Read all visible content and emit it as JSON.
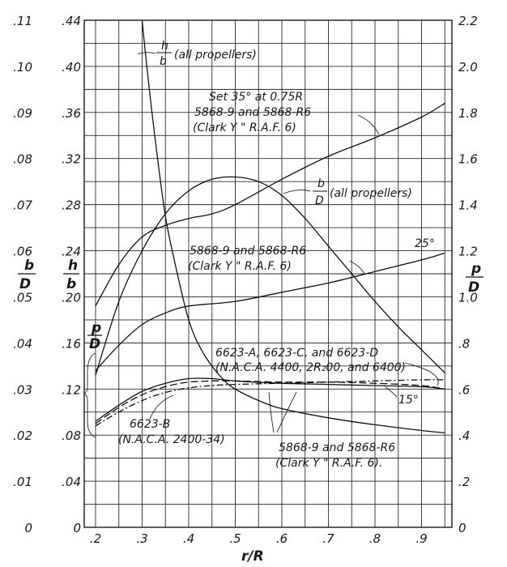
{
  "chart_data": {
    "type": "line",
    "xlabel": "r/R",
    "x_ticks": [
      ".2",
      ".3",
      ".4",
      ".5",
      ".6",
      ".7",
      ".8",
      ".9"
    ],
    "x_range": [
      0.2,
      0.95
    ],
    "axes": {
      "left_outer": {
        "label_num": "b",
        "label_den": "D",
        "range": [
          0,
          0.11
        ],
        "ticks": [
          "0",
          ".01",
          ".02",
          ".03",
          ".04",
          ".05",
          ".06",
          ".07",
          ".08",
          ".09",
          ".10",
          ".11"
        ]
      },
      "left_inner": {
        "label_num": "h",
        "label_den": "b",
        "range": [
          0,
          0.44
        ],
        "ticks": [
          "0",
          ".04",
          ".08",
          ".12",
          ".16",
          ".20",
          ".24",
          ".28",
          ".32",
          ".36",
          ".40",
          ".44"
        ]
      },
      "right": {
        "label_num": "p",
        "label_den": "D",
        "range": [
          0,
          2.2
        ],
        "ticks": [
          "0",
          ".2",
          ".4",
          ".6",
          ".8",
          "1.0",
          "1.2",
          "1.4",
          "1.6",
          "1.8",
          "2.0",
          "2.2"
        ]
      }
    },
    "series": [
      {
        "axis": "left_inner",
        "style": "solid",
        "points": [
          [
            0.3,
            0.44
          ],
          [
            0.31,
            0.4
          ],
          [
            0.33,
            0.33
          ],
          [
            0.35,
            0.27
          ],
          [
            0.37,
            0.23
          ],
          [
            0.4,
            0.18
          ],
          [
            0.43,
            0.152
          ],
          [
            0.47,
            0.13
          ],
          [
            0.5,
            0.12
          ],
          [
            0.55,
            0.11
          ],
          [
            0.6,
            0.103
          ],
          [
            0.7,
            0.095
          ],
          [
            0.8,
            0.089
          ],
          [
            0.9,
            0.084
          ],
          [
            0.95,
            0.082
          ]
        ]
      },
      {
        "axis": "left_outer",
        "style": "solid",
        "points": [
          [
            0.2,
            0.033
          ],
          [
            0.25,
            0.049
          ],
          [
            0.3,
            0.06
          ],
          [
            0.35,
            0.068
          ],
          [
            0.4,
            0.073
          ],
          [
            0.45,
            0.0755
          ],
          [
            0.5,
            0.076
          ],
          [
            0.55,
            0.075
          ],
          [
            0.6,
            0.072
          ],
          [
            0.65,
            0.067
          ],
          [
            0.7,
            0.061
          ],
          [
            0.75,
            0.055
          ],
          [
            0.8,
            0.049
          ],
          [
            0.85,
            0.0435
          ],
          [
            0.9,
            0.0385
          ],
          [
            0.95,
            0.0335
          ]
        ]
      },
      {
        "axis": "right",
        "style": "solid",
        "points": [
          [
            0.2,
            0.96
          ],
          [
            0.25,
            1.14
          ],
          [
            0.3,
            1.26
          ],
          [
            0.35,
            1.31
          ],
          [
            0.4,
            1.34
          ],
          [
            0.45,
            1.36
          ],
          [
            0.5,
            1.4
          ],
          [
            0.6,
            1.51
          ],
          [
            0.7,
            1.61
          ],
          [
            0.8,
            1.69
          ],
          [
            0.9,
            1.78
          ],
          [
            0.95,
            1.84
          ]
        ]
      },
      {
        "axis": "right",
        "style": "solid",
        "points": [
          [
            0.2,
            0.68
          ],
          [
            0.25,
            0.79
          ],
          [
            0.3,
            0.88
          ],
          [
            0.35,
            0.93
          ],
          [
            0.4,
            0.96
          ],
          [
            0.5,
            0.98
          ],
          [
            0.6,
            1.02
          ],
          [
            0.7,
            1.06
          ],
          [
            0.8,
            1.11
          ],
          [
            0.9,
            1.16
          ],
          [
            0.95,
            1.19
          ]
        ]
      },
      {
        "axis": "right",
        "style": "solid",
        "points": [
          [
            0.2,
            0.46
          ],
          [
            0.25,
            0.53
          ],
          [
            0.3,
            0.59
          ],
          [
            0.35,
            0.625
          ],
          [
            0.4,
            0.645
          ],
          [
            0.45,
            0.645
          ],
          [
            0.5,
            0.635
          ],
          [
            0.6,
            0.625
          ],
          [
            0.7,
            0.62
          ],
          [
            0.8,
            0.615
          ],
          [
            0.9,
            0.61
          ],
          [
            0.95,
            0.6
          ]
        ]
      },
      {
        "axis": "right",
        "style": "dashed",
        "points": [
          [
            0.2,
            0.45
          ],
          [
            0.25,
            0.52
          ],
          [
            0.3,
            0.575
          ],
          [
            0.35,
            0.61
          ],
          [
            0.4,
            0.63
          ],
          [
            0.45,
            0.635
          ],
          [
            0.5,
            0.635
          ],
          [
            0.6,
            0.63
          ],
          [
            0.7,
            0.63
          ],
          [
            0.8,
            0.625
          ],
          [
            0.9,
            0.615
          ],
          [
            0.95,
            0.6
          ]
        ]
      },
      {
        "axis": "right",
        "style": "dashdot",
        "points": [
          [
            0.2,
            0.44
          ],
          [
            0.25,
            0.5
          ],
          [
            0.3,
            0.55
          ],
          [
            0.35,
            0.585
          ],
          [
            0.4,
            0.605
          ],
          [
            0.45,
            0.615
          ],
          [
            0.5,
            0.62
          ],
          [
            0.6,
            0.625
          ],
          [
            0.7,
            0.63
          ],
          [
            0.8,
            0.635
          ],
          [
            0.9,
            0.64
          ],
          [
            0.95,
            0.64
          ]
        ]
      }
    ],
    "annotations": [
      {
        "id": "hb",
        "num": "h",
        "den": "b",
        "text": "(all propellers)"
      },
      {
        "id": "set35_1",
        "text": "Set 35° at 0.75R"
      },
      {
        "id": "set35_2",
        "text": "5868-9 and 5868-R6"
      },
      {
        "id": "set35_3",
        "text": "(Clark Y  \"  R.A.F. 6)"
      },
      {
        "id": "bd",
        "num": "b",
        "den": "D",
        "text": "(all propellers)"
      },
      {
        "id": "deg25",
        "text": "25°"
      },
      {
        "id": "mid_1",
        "text": "5868-9 and 5868-R6"
      },
      {
        "id": "mid_2",
        "text": "(Clark Y  \"  R.A.F. 6)"
      },
      {
        "id": "pd",
        "num": "p",
        "den": "D"
      },
      {
        "id": "naca_1",
        "text": "6623-A, 6623-C, and 6623-D"
      },
      {
        "id": "naca_2",
        "text": "(N.A.C.A. 4400, 2R₂00, and 6400)"
      },
      {
        "id": "deg15",
        "text": "15°"
      },
      {
        "id": "b_1",
        "text": "6623-B"
      },
      {
        "id": "b_2",
        "text": "(N.A.C.A. 2400-34)"
      },
      {
        "id": "low_1",
        "text": "5868-9 and 5868-R6"
      },
      {
        "id": "low_2",
        "text": "(Clark Y  \"  R.A.F. 6)."
      }
    ]
  }
}
